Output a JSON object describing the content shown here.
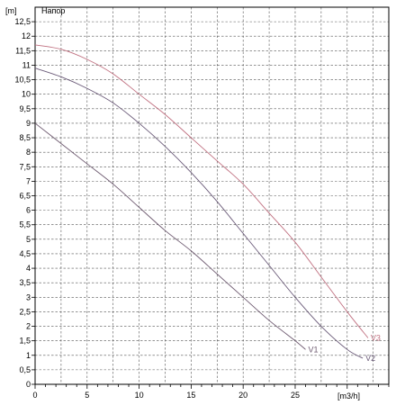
{
  "chart_data": {
    "type": "line",
    "title": "",
    "legend_label": "Напор",
    "ylabel": "[m]",
    "xlabel": "[m3/h]",
    "xlim": [
      0,
      34
    ],
    "ylim": [
      0,
      13
    ],
    "x_ticks": [
      0,
      5,
      10,
      15,
      20,
      25
    ],
    "y_ticks": [
      "0",
      "0,5",
      "1",
      "1,5",
      "2",
      "2,5",
      "3",
      "3,5",
      "4",
      "4,5",
      "5",
      "5,5",
      "6",
      "6,5",
      "7",
      "7,5",
      "8",
      "8,5",
      "9",
      "9,5",
      "10",
      "10,5",
      "11",
      "11,5",
      "12",
      "12,5"
    ],
    "grid": true,
    "series": [
      {
        "name": "V1",
        "color": "#6e5a70",
        "x": [
          0,
          2.5,
          5,
          7.5,
          10,
          12.5,
          15,
          17.5,
          20,
          22.5,
          25,
          26
        ],
        "y": [
          9.0,
          8.3,
          7.6,
          6.9,
          6.1,
          5.3,
          4.6,
          3.8,
          3.0,
          2.2,
          1.5,
          1.2
        ]
      },
      {
        "name": "V2",
        "color": "#6a5a78",
        "x": [
          0,
          2.5,
          5,
          7.5,
          10,
          12.5,
          15,
          17.5,
          20,
          22.5,
          25,
          27.5,
          30,
          31.5
        ],
        "y": [
          10.9,
          10.6,
          10.2,
          9.7,
          9.0,
          8.2,
          7.3,
          6.3,
          5.2,
          4.1,
          3.0,
          2.0,
          1.2,
          0.9
        ]
      },
      {
        "name": "V3",
        "color": "#c07080",
        "x": [
          0,
          2.5,
          5,
          7.5,
          10,
          12.5,
          15,
          17.5,
          20,
          22.5,
          25,
          27.5,
          30,
          32
        ],
        "y": [
          11.7,
          11.55,
          11.2,
          10.7,
          10.0,
          9.3,
          8.5,
          7.7,
          6.9,
          5.9,
          4.9,
          3.7,
          2.5,
          1.6
        ]
      }
    ]
  }
}
